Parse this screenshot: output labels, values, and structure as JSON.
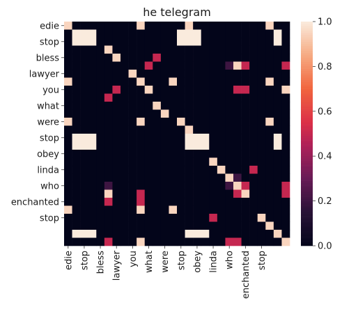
{
  "chart_data": {
    "type": "heatmap",
    "title": "he telegram",
    "xlabel": "",
    "ylabel": "",
    "tokens": [
      "edie",
      "",
      "stop",
      "",
      "",
      "bless",
      "",
      "lawyer",
      "",
      "you",
      "",
      "what",
      "",
      "were",
      "",
      "stop",
      "",
      "",
      "obey",
      "",
      "linda",
      "",
      "who",
      "",
      "enchanted",
      "",
      "stop",
      ""
    ],
    "row_tick_labels": [
      "edie",
      "stop",
      "bless",
      "lawyer",
      "you",
      "what",
      "were",
      "stop",
      "obey",
      "linda",
      "who",
      "enchanted",
      "stop"
    ],
    "col_tick_labels": [
      "edie",
      "stop",
      "bless",
      "lawyer",
      "you",
      "what",
      "were",
      "stop",
      "obey",
      "linda",
      "who",
      "enchanted",
      "stop"
    ],
    "matrix": [
      [
        0.95,
        0,
        0,
        0,
        0,
        0,
        0,
        0,
        0,
        0.95,
        0,
        0,
        0,
        0,
        0,
        0.95,
        0,
        0,
        0,
        0,
        0,
        0,
        0,
        0,
        0,
        0.95,
        0,
        0
      ],
      [
        0,
        1,
        1,
        1,
        0,
        0,
        0,
        0,
        0,
        0,
        0,
        0,
        0,
        0,
        1,
        1,
        1,
        0,
        0,
        0,
        0,
        0,
        0,
        0,
        0,
        0,
        1,
        0
      ],
      [
        0,
        1,
        1,
        1,
        0,
        0,
        0,
        0,
        0,
        0,
        0,
        0,
        0,
        0,
        1,
        1,
        1,
        0,
        0,
        0,
        0,
        0,
        0,
        0,
        0,
        0,
        1,
        0
      ],
      [
        0,
        0,
        0,
        0,
        0,
        0.95,
        0,
        0,
        0,
        0,
        0,
        0,
        0,
        0,
        0,
        0,
        0,
        0,
        0,
        0,
        0,
        0,
        0,
        0,
        0,
        0,
        0,
        0
      ],
      [
        0,
        0,
        0,
        0,
        0,
        0,
        0.95,
        0,
        0,
        0,
        0,
        0.5,
        0,
        0,
        0,
        0,
        0,
        0,
        0,
        0,
        0,
        0,
        0,
        0,
        0,
        0,
        0,
        0
      ],
      [
        0,
        0,
        0,
        0,
        0,
        0,
        0,
        0,
        0,
        0,
        0.5,
        0,
        0,
        0,
        0,
        0,
        0,
        0,
        0,
        0,
        0.2,
        0.95,
        0.5,
        0,
        0,
        0,
        0,
        0.5
      ],
      [
        0,
        0,
        0,
        0,
        0,
        0,
        0,
        0,
        0.95,
        0,
        0,
        0,
        0,
        0,
        0,
        0,
        0,
        0,
        0,
        0,
        0,
        0,
        0,
        0,
        0,
        0,
        0,
        0
      ],
      [
        0.95,
        0,
        0,
        0,
        0,
        0,
        0,
        0,
        0,
        0.95,
        0,
        0,
        0,
        0.95,
        0,
        0,
        0,
        0,
        0,
        0,
        0,
        0,
        0,
        0,
        0,
        0.95,
        0,
        0
      ],
      [
        0,
        0,
        0,
        0,
        0,
        0,
        0.5,
        0,
        0,
        0,
        0.95,
        0,
        0,
        0,
        0,
        0,
        0,
        0,
        0,
        0,
        0,
        0.5,
        0.5,
        0,
        0,
        0,
        0,
        0.95
      ],
      [
        0,
        0,
        0,
        0,
        0,
        0.5,
        0,
        0,
        0,
        0,
        0,
        0,
        0,
        0,
        0,
        0,
        0,
        0,
        0,
        0,
        0,
        0,
        0,
        0,
        0,
        0,
        0,
        0
      ],
      [
        0,
        0,
        0,
        0,
        0,
        0,
        0,
        0,
        0,
        0,
        0,
        0.95,
        0,
        0,
        0,
        0,
        0,
        0,
        0,
        0,
        0,
        0,
        0,
        0,
        0,
        0,
        0,
        0
      ],
      [
        0,
        0,
        0,
        0,
        0,
        0,
        0,
        0,
        0,
        0,
        0,
        0,
        0.95,
        0,
        0,
        0,
        0,
        0,
        0,
        0,
        0,
        0,
        0,
        0,
        0,
        0,
        0,
        0
      ],
      [
        0.95,
        0,
        0,
        0,
        0,
        0,
        0,
        0,
        0,
        0.95,
        0,
        0,
        0,
        0,
        0.95,
        0,
        0,
        0,
        0,
        0,
        0,
        0,
        0,
        0,
        0,
        0.95,
        0,
        0
      ],
      [
        0,
        0,
        0,
        0,
        0,
        0,
        0,
        0,
        0,
        0,
        0,
        0,
        0,
        0,
        0,
        0.95,
        0,
        0,
        0,
        0,
        0,
        0,
        0,
        0,
        0,
        0,
        0,
        0
      ],
      [
        0,
        1,
        1,
        1,
        0,
        0,
        0,
        0,
        0,
        0,
        0,
        0,
        0,
        0,
        0,
        1,
        1,
        1,
        0,
        0,
        0,
        0,
        0,
        0,
        0,
        0,
        1,
        0
      ],
      [
        0,
        1,
        1,
        1,
        0,
        0,
        0,
        0,
        0,
        0,
        0,
        0,
        0,
        0,
        0,
        1,
        1,
        1,
        0,
        0,
        0,
        0,
        0,
        0,
        0,
        0,
        1,
        0
      ],
      [
        0,
        0,
        0,
        0,
        0,
        0,
        0,
        0,
        0,
        0,
        0,
        0,
        0,
        0,
        0,
        0,
        0,
        0,
        0,
        0,
        0,
        0,
        0,
        0,
        0,
        0,
        0,
        0
      ],
      [
        0,
        0,
        0,
        0,
        0,
        0,
        0,
        0,
        0,
        0,
        0,
        0,
        0,
        0,
        0,
        0,
        0,
        0,
        0.95,
        0,
        0,
        0,
        0,
        0,
        0,
        0,
        0,
        0
      ],
      [
        0,
        0,
        0,
        0,
        0,
        0,
        0,
        0,
        0,
        0,
        0,
        0,
        0,
        0,
        0,
        0,
        0,
        0,
        0,
        0.95,
        0,
        0,
        0,
        0.5,
        0,
        0,
        0,
        0
      ],
      [
        0,
        0,
        0,
        0,
        0,
        0,
        0,
        0,
        0,
        0,
        0,
        0,
        0,
        0,
        0,
        0,
        0,
        0,
        0,
        0,
        0.95,
        0.2,
        0,
        0,
        0,
        0,
        0,
        0
      ],
      [
        0,
        0,
        0,
        0,
        0,
        0.2,
        0,
        0,
        0,
        0,
        0,
        0,
        0,
        0,
        0,
        0,
        0,
        0,
        0,
        0,
        0.2,
        0.95,
        0.5,
        0,
        0,
        0,
        0,
        0.5
      ],
      [
        0,
        0,
        0,
        0,
        0,
        0.95,
        0,
        0,
        0,
        0.5,
        0,
        0,
        0,
        0,
        0,
        0,
        0,
        0,
        0,
        0,
        0,
        0.5,
        0.95,
        0,
        0,
        0,
        0,
        0.5
      ],
      [
        0,
        0,
        0,
        0,
        0,
        0.5,
        0,
        0,
        0,
        0.5,
        0,
        0,
        0,
        0,
        0,
        0,
        0,
        0,
        0,
        0,
        0,
        0,
        0,
        0,
        0,
        0,
        0,
        0
      ],
      [
        0.95,
        0,
        0,
        0,
        0,
        0,
        0,
        0,
        0,
        0.95,
        0,
        0,
        0,
        0.95,
        0,
        0,
        0,
        0,
        0,
        0,
        0,
        0,
        0,
        0,
        0,
        0,
        0,
        0
      ],
      [
        0,
        0,
        0,
        0,
        0,
        0,
        0,
        0,
        0,
        0,
        0,
        0,
        0,
        0,
        0,
        0,
        0,
        0,
        0.5,
        0,
        0,
        0,
        0,
        0,
        0.95,
        0,
        0,
        0
      ],
      [
        0,
        0,
        0,
        0,
        0,
        0,
        0,
        0,
        0,
        0,
        0,
        0,
        0,
        0,
        0,
        0,
        0,
        0,
        0,
        0,
        0,
        0,
        0,
        0,
        0,
        0.95,
        0,
        0
      ],
      [
        0,
        1,
        1,
        1,
        0,
        0,
        0,
        0,
        0,
        0,
        0,
        0,
        0,
        0,
        0,
        1,
        1,
        1,
        0,
        0,
        0,
        0,
        0,
        0,
        0,
        0,
        0.95,
        0
      ],
      [
        0,
        0,
        0,
        0,
        0,
        0.5,
        0,
        0,
        0,
        0.95,
        0,
        0,
        0,
        0,
        0,
        0,
        0,
        0,
        0,
        0,
        0.5,
        0.5,
        0,
        0,
        0,
        0,
        0,
        0.95
      ]
    ],
    "colorbar": {
      "min": 0.0,
      "max": 1.0,
      "ticks": [
        "0.0",
        "0.2",
        "0.4",
        "0.6",
        "0.8",
        "1.0"
      ],
      "colormap": "rocket"
    },
    "grid": false,
    "legend": "none"
  }
}
